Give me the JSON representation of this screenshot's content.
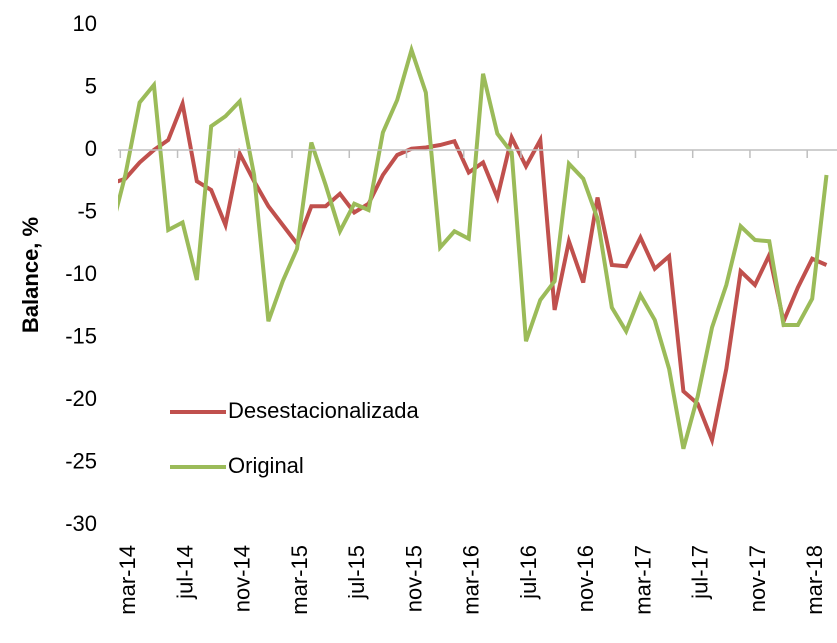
{
  "chart_data": {
    "type": "line",
    "y_label": "Balance, %",
    "categories": [
      null,
      "mar-14",
      null,
      null,
      null,
      "jul-14",
      null,
      null,
      null,
      "nov-14",
      null,
      null,
      null,
      "mar-15",
      null,
      null,
      null,
      "jul-15",
      null,
      null,
      null,
      "nov-15",
      null,
      null,
      null,
      "mar-16",
      null,
      null,
      null,
      "jul-16",
      null,
      null,
      null,
      "nov-16",
      null,
      null,
      null,
      "mar-17",
      null,
      null,
      null,
      "jul-17",
      null,
      null,
      null,
      "nov-17",
      null,
      null,
      null,
      "mar-18",
      null
    ],
    "series": [
      {
        "name": "Desestacionalizada",
        "color": "#c0504d",
        "values": [
          -2.7,
          -2.3,
          -1.0,
          0,
          0.8,
          3.7,
          -2.5,
          -3.2,
          -6,
          -0.3,
          -2.5,
          -4.5,
          -6,
          -7.5,
          -4.5,
          -4.5,
          -3.5,
          -5,
          -4.3,
          -2,
          -0.4,
          0.1,
          0.2,
          0.4,
          0.7,
          -1.8,
          -1,
          -3.8,
          1,
          -1.3,
          0.8,
          -12.8,
          -7.3,
          -10.6,
          -3.8,
          -9.2,
          -9.3,
          -7,
          -9.5,
          -8.5,
          -19.3,
          -20.3,
          -23.2,
          -17.5,
          -9.7,
          -10.8,
          -8.4,
          -13.7,
          -11,
          -8.7,
          -9.2
        ]
      },
      {
        "name": "Original",
        "color": "#9bbb59",
        "values": [
          -6.5,
          -2,
          3.8,
          5.2,
          -6.4,
          -5.8,
          -10.4,
          1.9,
          2.7,
          3.9,
          -2,
          -13.7,
          -10.5,
          -7.9,
          0.6,
          -2.8,
          -6.5,
          -4.3,
          -4.8,
          1.4,
          4,
          8,
          4.6,
          -7.8,
          -6.5,
          -7.1,
          6.1,
          1.3,
          -0.2,
          -15.3,
          -12,
          -10.5,
          -1.1,
          -2.3,
          -5.5,
          -12.6,
          -14.5,
          -11.6,
          -13.6,
          -17.5,
          -23.9,
          -19.7,
          -14.2,
          -10.8,
          -6.1,
          -7.2,
          -7.3,
          -14,
          -14,
          -11.9,
          -2
        ]
      }
    ],
    "ylim": [
      -30,
      10
    ],
    "yticks": [
      -30,
      -25,
      -20,
      -15,
      -10,
      -5,
      0,
      5,
      10
    ],
    "legend": "lower left"
  }
}
